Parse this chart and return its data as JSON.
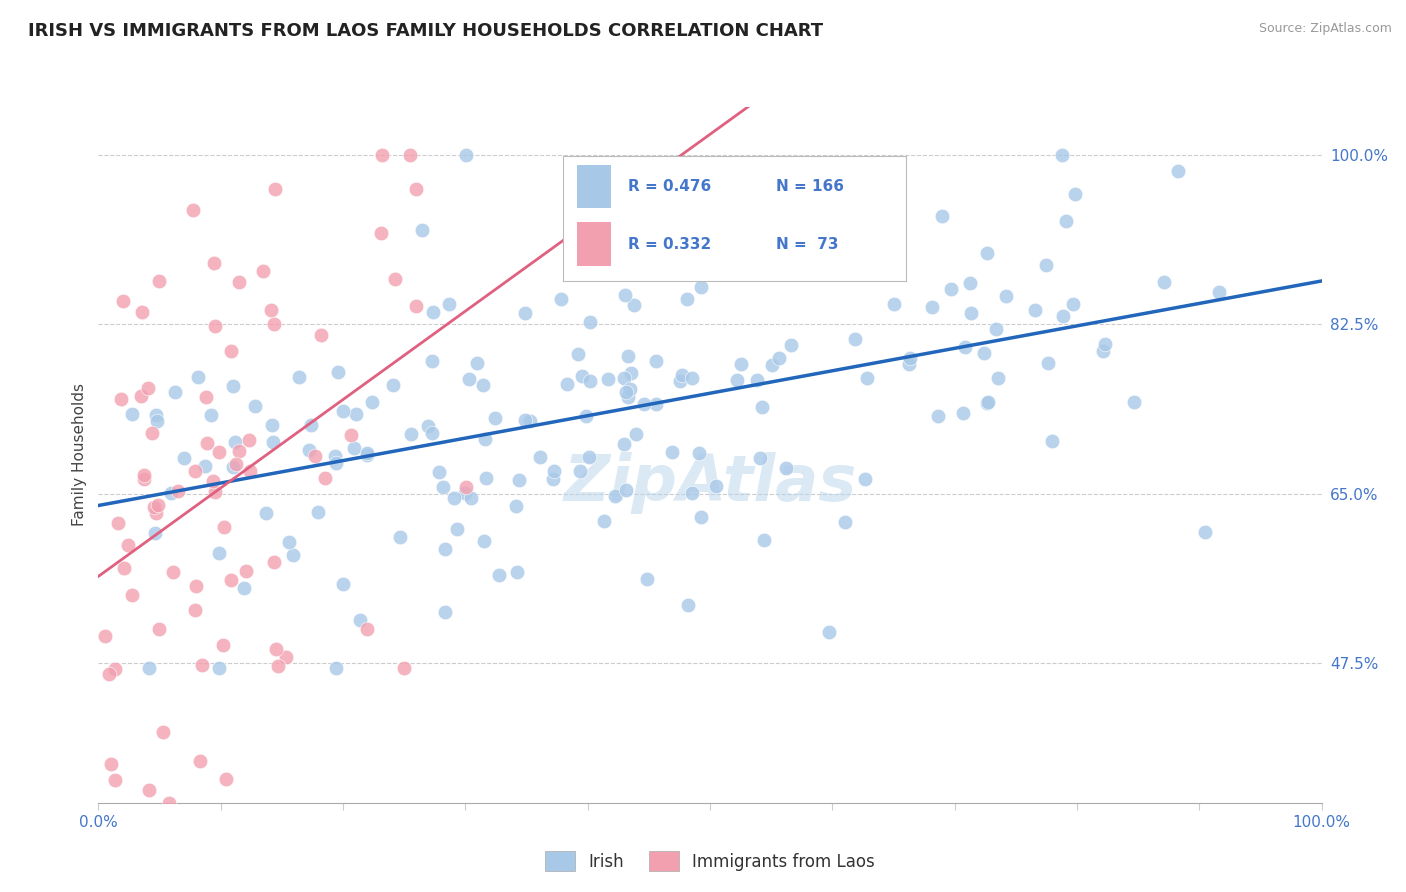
{
  "title": "IRISH VS IMMIGRANTS FROM LAOS FAMILY HOUSEHOLDS CORRELATION CHART",
  "source": "Source: ZipAtlas.com",
  "ylabel": "Family Households",
  "xlim": [
    0.0,
    1.0
  ],
  "ylim": [
    0.33,
    1.05
  ],
  "yticks": [
    0.475,
    0.65,
    0.825,
    1.0
  ],
  "ytick_labels": [
    "47.5%",
    "65.0%",
    "82.5%",
    "100.0%"
  ],
  "xticks": [
    0.0,
    0.1,
    0.2,
    0.3,
    0.4,
    0.5,
    0.6,
    0.7,
    0.8,
    0.9,
    1.0
  ],
  "xtick_labels": [
    "0.0%",
    "",
    "",
    "",
    "",
    "",
    "",
    "",
    "",
    "",
    "100.0%"
  ],
  "irish_R": 0.476,
  "irish_N": 166,
  "laos_R": 0.332,
  "laos_N": 73,
  "irish_color": "#a8c8e8",
  "laos_color": "#f2a0b0",
  "irish_line_color": "#2266bb",
  "laos_line_color": "#e06080",
  "legend_irish_label": "Irish",
  "legend_laos_label": "Immigrants from Laos",
  "watermark": "ZipAtlas",
  "title_fontsize": 13,
  "axis_label_fontsize": 11,
  "tick_fontsize": 11,
  "tick_color": "#4477cc"
}
